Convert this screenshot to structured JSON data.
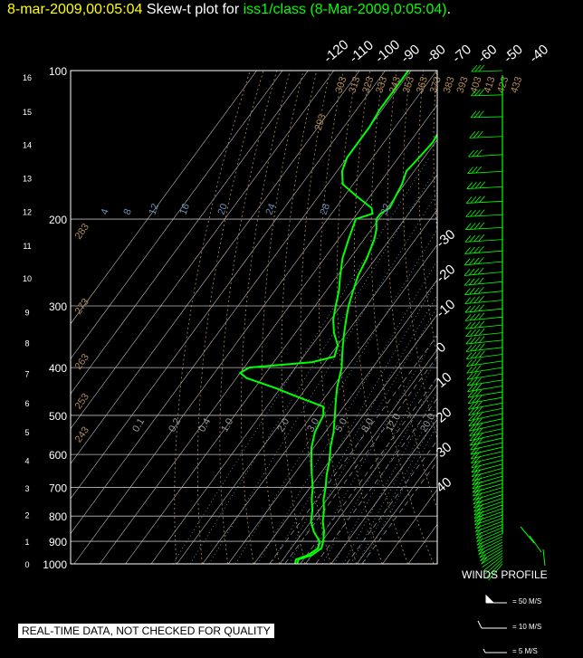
{
  "header": {
    "date_time": "8-mar-2009,00:05:04",
    "plot_label": "Skew-t plot for",
    "source": "iss1/class (8-Mar-2009,0:05:04)",
    "trailing": "."
  },
  "winds": {
    "title": "WINDS PROFILE",
    "legend": [
      {
        "label": "= 50 M/S"
      },
      {
        "label": "= 10 M/S"
      },
      {
        "label": "= 5 M/S"
      }
    ]
  },
  "footer_note": "REAL-TIME DATA, NOT CHECKED FOR QUALITY",
  "colors": {
    "background": "#000000",
    "title_time": "#ffff00",
    "sounding": "#00ff00",
    "isobar": "#bbbbbb",
    "isotherm": "#bbbbbb",
    "dry_adiabat": "#b08a5a",
    "moist_adiabat": "#888888",
    "mixing_ratio": "#6f8fb0"
  },
  "chart_data": {
    "type": "line",
    "pressure_levels_mb": [
      100,
      200,
      300,
      400,
      500,
      600,
      700,
      800,
      900,
      1000
    ],
    "height_km_labels": [
      "16",
      "15",
      "14",
      "13",
      "12",
      "11",
      "10",
      "9",
      "8",
      "7",
      "6",
      "5",
      "4",
      "3",
      "2",
      "1",
      "0"
    ],
    "height_km_pressure_mb": [
      103,
      121,
      141,
      165,
      193,
      226,
      263,
      308,
      356,
      411,
      471,
      540,
      616,
      701,
      795,
      899,
      1000
    ],
    "isotherm_top_labels": [
      "-120",
      "-110",
      "-100",
      "-90",
      "-80",
      "-70",
      "-60",
      "-50",
      "-40"
    ],
    "isotherm_right_labels": [
      "-30",
      "-20",
      "-10",
      "0",
      "10",
      "20",
      "30",
      "40"
    ],
    "dry_adiabat_labels": [
      "293",
      "303",
      "313",
      "323",
      "333",
      "343",
      "353",
      "363",
      "373",
      "383",
      "393",
      "403",
      "413",
      "423",
      "433"
    ],
    "dry_adiabat_labels_left": [
      "283",
      "273",
      "263",
      "253",
      "243"
    ],
    "mixing_ratio_labels_upper": [
      "4",
      "8",
      "12",
      "16",
      "20",
      "24",
      "28",
      "32"
    ],
    "mixing_ratio_labels_lower": [
      "0.1",
      "0.2",
      "0.4",
      "1.0",
      "2.0",
      "3.0",
      "5.0",
      "8.0",
      "12.0",
      "20.0"
    ],
    "temperature_profile": [
      [
        1000,
        6.8
      ],
      [
        980,
        6.0
      ],
      [
        960,
        10.0
      ],
      [
        930,
        11.8
      ],
      [
        900,
        10.5
      ],
      [
        860,
        8.0
      ],
      [
        820,
        4.6
      ],
      [
        780,
        2.0
      ],
      [
        740,
        -1.4
      ],
      [
        700,
        -4.0
      ],
      [
        660,
        -7.2
      ],
      [
        620,
        -10.0
      ],
      [
        580,
        -13.6
      ],
      [
        540,
        -16.8
      ],
      [
        500,
        -21.0
      ],
      [
        470,
        -24.5
      ],
      [
        440,
        -28.0
      ],
      [
        420,
        -30.0
      ],
      [
        400,
        -32.0
      ],
      [
        380,
        -35.0
      ],
      [
        360,
        -38.0
      ],
      [
        340,
        -41.0
      ],
      [
        320,
        -44.0
      ],
      [
        300,
        -47.0
      ],
      [
        280,
        -49.5
      ],
      [
        260,
        -52.0
      ],
      [
        240,
        -53.5
      ],
      [
        220,
        -56.0
      ],
      [
        210,
        -58.0
      ],
      [
        200,
        -61.0
      ],
      [
        195,
        -61.0
      ],
      [
        190,
        -59.0
      ],
      [
        180,
        -60.0
      ],
      [
        170,
        -61.0
      ],
      [
        160,
        -63.0
      ],
      [
        150,
        -62.0
      ],
      [
        140,
        -61.0
      ],
      [
        130,
        -62.0
      ],
      [
        120,
        -64.0
      ],
      [
        110,
        -66.0
      ],
      [
        100,
        -66.0
      ]
    ],
    "dewpoint_profile": [
      [
        1000,
        6.0
      ],
      [
        980,
        5.0
      ],
      [
        960,
        8.5
      ],
      [
        930,
        10.5
      ],
      [
        900,
        9.0
      ],
      [
        860,
        4.0
      ],
      [
        820,
        0.0
      ],
      [
        780,
        -2.5
      ],
      [
        740,
        -6.0
      ],
      [
        700,
        -9.0
      ],
      [
        660,
        -13.0
      ],
      [
        620,
        -17.0
      ],
      [
        580,
        -21.0
      ],
      [
        540,
        -24.0
      ],
      [
        500,
        -25.5
      ],
      [
        480,
        -28.0
      ],
      [
        460,
        -40.0
      ],
      [
        440,
        -52.0
      ],
      [
        420,
        -66.0
      ],
      [
        410,
        -70.0
      ],
      [
        400,
        -68.0
      ],
      [
        390,
        -45.0
      ],
      [
        380,
        -38.0
      ],
      [
        360,
        -40.0
      ],
      [
        340,
        -45.0
      ],
      [
        320,
        -49.0
      ],
      [
        300,
        -52.0
      ],
      [
        280,
        -55.0
      ],
      [
        260,
        -59.0
      ],
      [
        240,
        -63.0
      ],
      [
        220,
        -66.0
      ],
      [
        200,
        -69.0
      ],
      [
        195,
        -64.0
      ],
      [
        190,
        -66.0
      ],
      [
        180,
        -75.0
      ],
      [
        170,
        -84.0
      ],
      [
        160,
        -88.0
      ],
      [
        150,
        -90.0
      ],
      [
        140,
        -90.0
      ],
      [
        130,
        -90.0
      ],
      [
        120,
        -91.0
      ],
      [
        110,
        -91.0
      ],
      [
        100,
        -91.0
      ]
    ],
    "wind_profile": [
      [
        1000,
        220,
        4
      ],
      [
        950,
        240,
        9
      ],
      [
        900,
        250,
        14
      ],
      [
        850,
        255,
        17
      ],
      [
        800,
        260,
        20
      ],
      [
        750,
        260,
        22
      ],
      [
        700,
        265,
        24
      ],
      [
        650,
        265,
        26
      ],
      [
        600,
        270,
        28
      ],
      [
        550,
        270,
        31
      ],
      [
        500,
        270,
        34
      ],
      [
        450,
        275,
        36
      ],
      [
        400,
        275,
        39
      ],
      [
        350,
        280,
        42
      ],
      [
        300,
        280,
        44
      ],
      [
        250,
        280,
        46
      ],
      [
        200,
        285,
        44
      ],
      [
        175,
        285,
        42
      ],
      [
        150,
        285,
        38
      ],
      [
        125,
        290,
        34
      ],
      [
        100,
        290,
        32
      ]
    ],
    "xlabel": "",
    "ylabel": "",
    "grid": true
  }
}
